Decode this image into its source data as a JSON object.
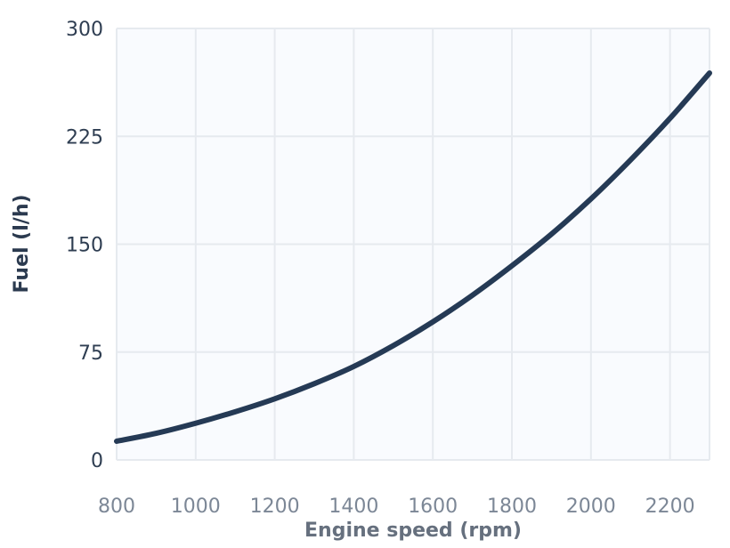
{
  "chart_data": {
    "type": "line",
    "title": "",
    "xlabel": "Engine speed (rpm)",
    "ylabel": "Fuel (l/h)",
    "xlim": [
      800,
      2300
    ],
    "ylim": [
      0,
      300
    ],
    "x_ticks": [
      "800",
      "1000",
      "1200",
      "1400",
      "1600",
      "1800",
      "2000",
      "2200"
    ],
    "y_ticks": [
      "0",
      "75",
      "150",
      "225",
      "300"
    ],
    "x_tick_values": [
      800,
      1000,
      1200,
      1400,
      1600,
      1800,
      2000,
      2200
    ],
    "y_tick_values": [
      0,
      75,
      150,
      225,
      300
    ],
    "grid": true,
    "legend": "none",
    "series": [
      {
        "color": "#253a55",
        "x": [
          800,
          900,
          1000,
          1100,
          1200,
          1300,
          1400,
          1500,
          1600,
          1700,
          1800,
          1900,
          2000,
          2100,
          2200,
          2300
        ],
        "y": [
          13,
          18.5,
          25.5,
          33.5,
          42.5,
          53,
          65,
          79.5,
          96,
          114.5,
          135,
          157,
          181.5,
          208.5,
          237.5,
          269
        ]
      }
    ],
    "colors": {
      "plot_background": "#f9fbfe",
      "grid": "#e6eaef",
      "ytick_text": "#2f3e52",
      "xtick_text": "#7c8796",
      "xlabel_text": "#66707e",
      "ylabel_text": "#2b3a4f"
    }
  }
}
